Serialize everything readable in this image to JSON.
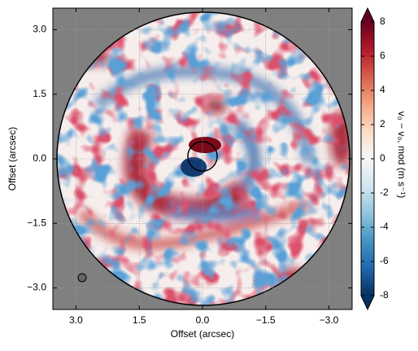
{
  "chart_data": {
    "type": "image",
    "xlabel": "Offset (arcsec)",
    "ylabel": "Offset (arcsec)",
    "xlim": [
      3.55,
      -3.55
    ],
    "ylim": [
      -3.5,
      3.5
    ],
    "xticks": [
      {
        "value": 3,
        "label": "3.0"
      },
      {
        "value": 1.5,
        "label": "1.5"
      },
      {
        "value": 0,
        "label": "0.0"
      },
      {
        "value": -1.5,
        "label": "−1.5"
      },
      {
        "value": -3,
        "label": "−3.0"
      }
    ],
    "yticks": [
      {
        "value": -3,
        "label": "−3.0"
      },
      {
        "value": -1.5,
        "label": "−1.5"
      },
      {
        "value": 0,
        "label": "0.0"
      },
      {
        "value": 1.5,
        "label": "1.5"
      },
      {
        "value": 3,
        "label": "3.0"
      }
    ],
    "grid": true,
    "colorbar": {
      "label": "v₀ − v₀, mod  (m s⁻¹)",
      "lim": [
        -8,
        8
      ],
      "ticks": [
        -8,
        -6,
        -4,
        -2,
        0,
        2,
        4,
        6,
        8
      ],
      "cmap": "RdBu_r"
    }
  }
}
